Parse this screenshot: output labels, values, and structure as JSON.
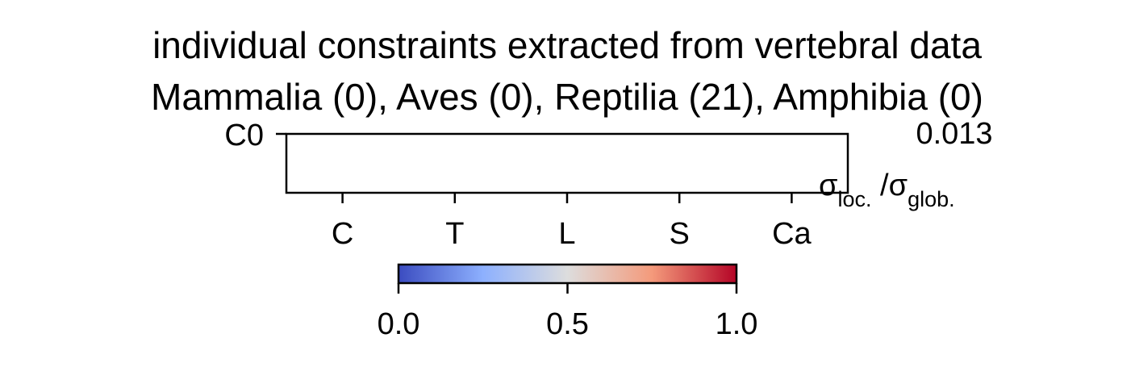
{
  "chart_data": {
    "type": "heatmap",
    "title_line1": "individual constraints extracted from vertebral data",
    "title_line2": "Mammalia (0), Aves (0), Reptilia (21), Amphibia (0)",
    "row_labels": [
      "C0"
    ],
    "column_labels": [
      "C",
      "T",
      "L",
      "S",
      "Ca"
    ],
    "values": [
      [
        null,
        null,
        null,
        null,
        null
      ]
    ],
    "row_annotations": [
      "0.013"
    ],
    "annotation_header": {
      "sigma": "σ",
      "sub_loc": "loc.",
      "slash": " /σ",
      "sub_glob": "glob."
    },
    "colorbar": {
      "colormap": "coolwarm",
      "colors": [
        "#3b4cc0",
        "#8db0fe",
        "#dddddd",
        "#f49a7b",
        "#b40426"
      ],
      "range": [
        0.0,
        1.0
      ],
      "ticks": [
        0.0,
        0.5,
        1.0
      ],
      "tick_labels": [
        "0.0",
        "0.5",
        "1.0"
      ]
    },
    "grid": false,
    "legend": "none"
  }
}
